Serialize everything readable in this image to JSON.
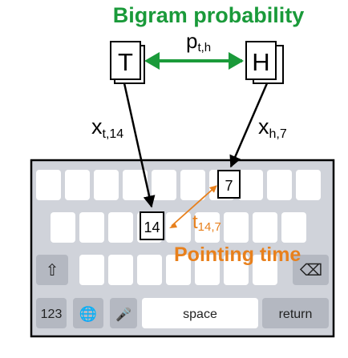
{
  "title": "Bigram probability",
  "letters": {
    "left": "T",
    "right": "H"
  },
  "labels": {
    "prob_main": "p",
    "prob_sub": "t,h",
    "xt_main": "x",
    "xt_sub": "t,14",
    "xh_main": "x",
    "xh_sub": "h,7",
    "time_main": "t",
    "time_sub": "14,7",
    "pointing_time": "Pointing time"
  },
  "key_indices": {
    "k14": "14",
    "k7": "7"
  },
  "keyboard": {
    "shift_glyph": "⇧",
    "backspace_glyph": "⌫",
    "numbers": "123",
    "globe_glyph": "🌐",
    "mic_glyph": "🎤",
    "space": "space",
    "return": "return"
  },
  "colors": {
    "title": "#1a9a3a",
    "double_arrow": "#1a9a3a",
    "pointing": "#e8801c",
    "keyboard_bg": "#d0d3da",
    "key_light": "#ffffff",
    "key_dark": "#b4b8c1"
  }
}
